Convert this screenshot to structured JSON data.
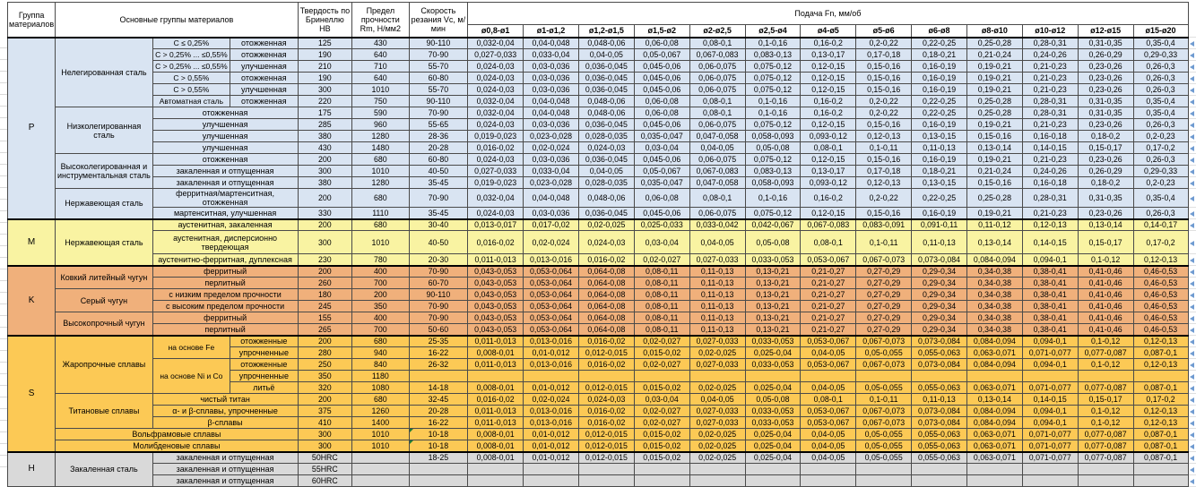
{
  "header": {
    "col_group": "Группа материалов",
    "col_materials": "Основные группы материалов",
    "col_hardness": "Твердость по Бринеллю HB",
    "col_strength": "Предел прочности Rm, Н/мм2",
    "col_speed": "Скорость резания Vc, м/мин",
    "col_feed": "Подача Fn, мм/об",
    "diameters": [
      "ø0,8-ø1",
      "ø1-ø1,2",
      "ø1,2-ø1,5",
      "ø1,5-ø2",
      "ø2-ø2,5",
      "ø2,5-ø4",
      "ø4-ø5",
      "ø5-ø6",
      "ø6-ø8",
      "ø8-ø10",
      "ø10-ø12",
      "ø12-ø15",
      "ø15-ø20"
    ]
  },
  "colors": {
    "group_P": "#d9e4f2",
    "group_M": "#f9f3a2",
    "group_K": "#f0b07b",
    "group_S": "#fcc955",
    "group_H": "#d9d9d9",
    "marker_blue": "#6f9bd1",
    "note_green": "#1e7b34"
  },
  "feed_patterns": {
    "A": [
      "0,032-0,04",
      "0,04-0,048",
      "0,048-0,06",
      "0,06-0,08",
      "0,08-0,1",
      "0,1-0,16",
      "0,16-0,2",
      "0,2-0,22",
      "0,22-0,25",
      "0,25-0,28",
      "0,28-0,31",
      "0,31-0,35",
      "0,35-0,4"
    ],
    "B": [
      "0,027-0,033",
      "0,033-0,04",
      "0,04-0,05",
      "0,05-0,067",
      "0,067-0,083",
      "0,083-0,13",
      "0,13-0,17",
      "0,17-0,18",
      "0,18-0,21",
      "0,21-0,24",
      "0,24-0,26",
      "0,26-0,29",
      "0,29-0,33"
    ],
    "C": [
      "0,024-0,03",
      "0,03-0,036",
      "0,036-0,045",
      "0,045-0,06",
      "0,06-0,075",
      "0,075-0,12",
      "0,12-0,15",
      "0,15-0,16",
      "0,16-0,19",
      "0,19-0,21",
      "0,21-0,23",
      "0,23-0,26",
      "0,26-0,3"
    ],
    "D": [
      "0,019-0,023",
      "0,023-0,028",
      "0,028-0,035",
      "0,035-0,047",
      "0,047-0,058",
      "0,058-0,093",
      "0,093-0,12",
      "0,12-0,13",
      "0,13-0,15",
      "0,15-0,16",
      "0,16-0,18",
      "0,18-0,2",
      "0,2-0,23"
    ],
    "E": [
      "0,016-0,02",
      "0,02-0,024",
      "0,024-0,03",
      "0,03-0,04",
      "0,04-0,05",
      "0,05-0,08",
      "0,08-0,1",
      "0,1-0,11",
      "0,11-0,13",
      "0,13-0,14",
      "0,14-0,15",
      "0,15-0,17",
      "0,17-0,2"
    ],
    "F": [
      "0,013-0,017",
      "0,017-0,02",
      "0,02-0,025",
      "0,025-0,033",
      "0,033-0,042",
      "0,042-0,067",
      "0,067-0,083",
      "0,083-0,091",
      "0,091-0,11",
      "0,11-0,12",
      "0,12-0,13",
      "0,13-0,14",
      "0,14-0,17"
    ],
    "G": [
      "0,011-0,013",
      "0,013-0,016",
      "0,016-0,02",
      "0,02-0,027",
      "0,027-0,033",
      "0,033-0,053",
      "0,053-0,067",
      "0,067-0,073",
      "0,073-0,084",
      "0,084-0,094",
      "0,094-0,1",
      "0,1-0,12",
      "0,12-0,13"
    ],
    "H": [
      "0,043-0,053",
      "0,053-0,064",
      "0,064-0,08",
      "0,08-0,11",
      "0,11-0,13",
      "0,13-0,21",
      "0,21-0,27",
      "0,27-0,29",
      "0,29-0,34",
      "0,34-0,38",
      "0,38-0,41",
      "0,41-0,46",
      "0,46-0,53"
    ],
    "I": [
      "0,008-0,01",
      "0,01-0,012",
      "0,012-0,015",
      "0,015-0,02",
      "0,02-0,025",
      "0,025-0,04",
      "0,04-0,05",
      "0,05-0,055",
      "0,055-0,063",
      "0,063-0,071",
      "0,071-0,077",
      "0,077-0,087",
      "0,087-0,1"
    ],
    "blank": [
      "",
      "",
      "",
      "",
      "",
      "",
      "",
      "",
      "",
      "",
      "",
      "",
      ""
    ]
  },
  "groups": [
    {
      "letter": "P",
      "materials": [
        {
          "name": "Нелегированная сталь",
          "rows": [
            {
              "sub": "C ≤ 0,25%",
              "state": "отожженная",
              "hb": "125",
              "rm": "430",
              "vc": "90-110",
              "f": "A"
            },
            {
              "sub": "C > 0,25% ... ≤0,55%",
              "state": "отожженная",
              "hb": "190",
              "rm": "640",
              "vc": "70-90",
              "f": "B"
            },
            {
              "sub": "C > 0,25% ... ≤0,55%",
              "state": "улучшенная",
              "hb": "210",
              "rm": "710",
              "vc": "55-70",
              "f": "C"
            },
            {
              "sub": "C > 0,55%",
              "state": "отожженная",
              "hb": "190",
              "rm": "640",
              "vc": "60-80",
              "f": "C"
            },
            {
              "sub": "C > 0,55%",
              "state": "улучшенная",
              "hb": "300",
              "rm": "1010",
              "vc": "55-70",
              "f": "C"
            },
            {
              "sub": "Автоматная сталь",
              "state": "отожженная",
              "hb": "220",
              "rm": "750",
              "vc": "90-110",
              "f": "A"
            }
          ]
        },
        {
          "name": "Низколегированная сталь",
          "rows": [
            {
              "state": "отожженная",
              "ss": 2,
              "hb": "175",
              "rm": "590",
              "vc": "70-90",
              "f": "A"
            },
            {
              "state": "улучшенная",
              "ss": 2,
              "hb": "285",
              "rm": "960",
              "vc": "55-65",
              "f": "C"
            },
            {
              "state": "улучшенная",
              "ss": 2,
              "hb": "380",
              "rm": "1280",
              "vc": "28-36",
              "f": "D"
            },
            {
              "state": "улучшенная",
              "ss": 2,
              "hb": "430",
              "rm": "1480",
              "vc": "20-28",
              "f": "E"
            }
          ]
        },
        {
          "name": "Высоколегированная и инструментальная сталь",
          "rows": [
            {
              "state": "отожженная",
              "ss": 2,
              "hb": "200",
              "rm": "680",
              "vc": "60-80",
              "f": "C"
            },
            {
              "state": "закаленная и отпущенная",
              "ss": 2,
              "hb": "300",
              "rm": "1010",
              "vc": "40-50",
              "f": "B"
            },
            {
              "state": "закаленная и отпущенная",
              "ss": 2,
              "hb": "380",
              "rm": "1280",
              "vc": "35-45",
              "f": "D"
            }
          ]
        },
        {
          "name": "Нержавеющая сталь",
          "rows": [
            {
              "state": "ферритная/мартенситная, отожженная",
              "ss": 2,
              "hb": "200",
              "rm": "680",
              "vc": "70-90",
              "f": "A"
            },
            {
              "state": "мартенситная, улучшенная",
              "ss": 2,
              "hb": "330",
              "rm": "1110",
              "vc": "35-45",
              "f": "C"
            }
          ]
        }
      ]
    },
    {
      "letter": "M",
      "materials": [
        {
          "name": "Нержавеющая сталь",
          "rows": [
            {
              "state": "аустенитная, закаленная",
              "ss": 2,
              "hb": "200",
              "rm": "680",
              "vc": "30-40",
              "f": "F"
            },
            {
              "state": "аустенитная, дисперсионно твердеющая",
              "ss": 2,
              "tall": true,
              "hb": "300",
              "rm": "1010",
              "vc": "40-50",
              "f": "E"
            },
            {
              "state": "аустенитно-ферритная, дуплексная",
              "ss": 2,
              "hb": "230",
              "rm": "780",
              "vc": "20-30",
              "f": "G"
            }
          ]
        }
      ]
    },
    {
      "letter": "K",
      "materials": [
        {
          "name": "Ковкий литейный чугун",
          "rows": [
            {
              "state": "ферритный",
              "ss": 2,
              "hb": "200",
              "rm": "400",
              "vc": "70-90",
              "f": "H"
            },
            {
              "state": "перлитный",
              "ss": 2,
              "hb": "260",
              "rm": "700",
              "vc": "60-70",
              "f": "H"
            }
          ]
        },
        {
          "name": "Серый чугун",
          "rows": [
            {
              "state": "с низким пределом прочности",
              "ss": 2,
              "hb": "180",
              "rm": "200",
              "vc": "90-110",
              "f": "H"
            },
            {
              "state": "с высоким пределом прочности",
              "ss": 2,
              "hb": "245",
              "rm": "350",
              "vc": "70-90",
              "f": "H"
            }
          ]
        },
        {
          "name": "Высокопрочный чугун",
          "rows": [
            {
              "state": "ферритный",
              "ss": 2,
              "hb": "155",
              "rm": "400",
              "vc": "70-90",
              "f": "H"
            },
            {
              "state": "перлитный",
              "ss": 2,
              "hb": "265",
              "rm": "700",
              "vc": "50-60",
              "f": "H"
            }
          ]
        }
      ]
    },
    {
      "letter": "S",
      "materials": [
        {
          "name": "Жаропрочные сплавы",
          "rows": [
            {
              "sub": "на основе Fe",
              "sub_rs": 2,
              "state": "отожженные",
              "hb": "200",
              "rm": "680",
              "vc": "25-35",
              "f": "G"
            },
            {
              "state": "упрочненные",
              "hb": "280",
              "rm": "940",
              "vc": "16-22",
              "f": "I"
            },
            {
              "sub": "на основе Ni и Co",
              "sub_rs": 3,
              "state": "отожженные",
              "hb": "250",
              "rm": "840",
              "vc": "26-32",
              "f": "G"
            },
            {
              "state": "упрочненные",
              "hb": "350",
              "rm": "1180",
              "vc": "",
              "f": "blank"
            },
            {
              "state": "литьё",
              "hb": "320",
              "rm": "1080",
              "vc": "14-18",
              "f": "I"
            }
          ]
        },
        {
          "name": "Титановые сплавы",
          "rows": [
            {
              "state": "чистый титан",
              "ss": 2,
              "hb": "200",
              "rm": "680",
              "vc": "32-45",
              "f": "E"
            },
            {
              "state": "α- и β-сплавы, упрочненные",
              "ss": 2,
              "hb": "375",
              "rm": "1260",
              "vc": "20-28",
              "f": "G"
            },
            {
              "state": "β-сплавы",
              "ss": 2,
              "hb": "410",
              "rm": "1400",
              "vc": "16-22",
              "f": "G"
            }
          ]
        },
        {
          "name": "Вольфрамовые сплавы",
          "full": true,
          "rows": [
            {
              "hb": "300",
              "rm": "1010",
              "vc": "10-18",
              "note": true,
              "f": "I"
            }
          ]
        },
        {
          "name": "Молибденовые сплавы",
          "full": true,
          "rows": [
            {
              "hb": "300",
              "rm": "1010",
              "vc": "10-18",
              "note": true,
              "f": "I"
            }
          ]
        }
      ]
    },
    {
      "letter": "H",
      "materials": [
        {
          "name": "Закаленная сталь",
          "rows": [
            {
              "state": "закаленная и отпущенная",
              "ss": 2,
              "hb": "50HRC",
              "rm": "",
              "vc": "18-25",
              "f": "I"
            },
            {
              "state": "закаленная и отпущенная",
              "ss": 2,
              "hb": "55HRC",
              "rm": "",
              "vc": "",
              "f": "blank"
            },
            {
              "state": "закаленная и отпущенная",
              "ss": 2,
              "hb": "60HRC",
              "rm": "",
              "vc": "",
              "f": "blank"
            }
          ]
        }
      ]
    }
  ]
}
